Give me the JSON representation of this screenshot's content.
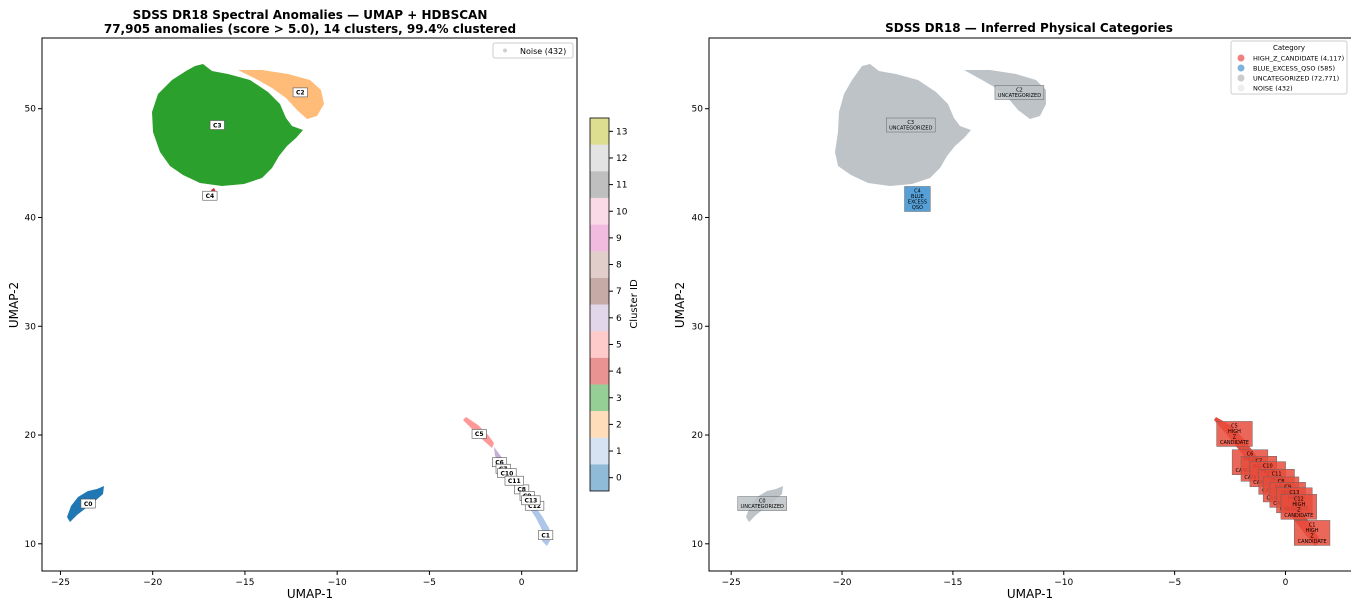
{
  "chart_data": [
    {
      "type": "scatter",
      "title": "SDSS DR18 Spectral Anomalies — UMAP + HDBSCAN",
      "subtitle": "77,905 anomalies (score > 5.0), 14 clusters, 99.4% clustered",
      "xlabel": "UMAP-1",
      "ylabel": "UMAP-2",
      "xlim": [
        -26,
        3
      ],
      "ylim": [
        7.5,
        56.5
      ],
      "xticks": [
        -25,
        -20,
        -15,
        -10,
        -5,
        0
      ],
      "yticks": [
        10,
        20,
        30,
        40,
        50
      ],
      "grid": false,
      "legend": {
        "placement": "top-right",
        "entries": [
          {
            "label": "Noise (432)",
            "color": "#d0d0d0"
          }
        ]
      },
      "colorbar": {
        "label": "Cluster ID",
        "ticks": [
          0,
          1,
          2,
          3,
          4,
          5,
          6,
          7,
          8,
          9,
          10,
          11,
          12,
          13
        ]
      },
      "clusters": [
        {
          "id": 0,
          "label": "C0",
          "color": "#1f77b4",
          "center": [
            -23.5,
            13.7
          ]
        },
        {
          "id": 1,
          "label": "C1",
          "color": "#aec7e8",
          "center": [
            1.3,
            10.8
          ]
        },
        {
          "id": 2,
          "label": "C2",
          "color": "#ffbb78",
          "center": [
            -12.0,
            51.5
          ]
        },
        {
          "id": 3,
          "label": "C3",
          "color": "#2ca02c",
          "center": [
            -16.5,
            48.5
          ]
        },
        {
          "id": 4,
          "label": "C4",
          "color": "#d62728",
          "center": [
            -16.9,
            42.0
          ]
        },
        {
          "id": 5,
          "label": "C5",
          "color": "#ff9896",
          "center": [
            -2.3,
            20.1
          ]
        },
        {
          "id": 6,
          "label": "C6",
          "color": "#c5b0d5",
          "center": [
            -1.2,
            17.5
          ]
        },
        {
          "id": 7,
          "label": "C7",
          "color": "#8c564b",
          "center": [
            -1.0,
            16.9
          ]
        },
        {
          "id": 8,
          "label": "C8",
          "color": "#c49c94",
          "center": [
            0.0,
            15.0
          ]
        },
        {
          "id": 9,
          "label": "C9",
          "color": "#e377c2",
          "center": [
            0.3,
            14.4
          ]
        },
        {
          "id": 10,
          "label": "C10",
          "color": "#f7b6d2",
          "center": [
            -0.8,
            16.5
          ]
        },
        {
          "id": 11,
          "label": "C11",
          "color": "#7f7f7f",
          "center": [
            -0.4,
            15.8
          ]
        },
        {
          "id": 12,
          "label": "C12",
          "color": "#c7c7c7",
          "center": [
            0.7,
            13.5
          ]
        },
        {
          "id": 13,
          "label": "C13",
          "color": "#bcbd22",
          "center": [
            0.5,
            14.0
          ]
        }
      ]
    },
    {
      "type": "scatter",
      "title": "SDSS DR18 — Inferred Physical Categories",
      "xlabel": "UMAP-1",
      "ylabel": "UMAP-2",
      "xlim": [
        -26,
        3
      ],
      "ylim": [
        7.5,
        56.5
      ],
      "xticks": [
        -25,
        -20,
        -15,
        -10,
        -5,
        0
      ],
      "yticks": [
        10,
        20,
        30,
        40,
        50
      ],
      "grid": false,
      "legend": {
        "placement": "top-right",
        "title": "Category",
        "entries": [
          {
            "label": "HIGH_Z_CANDIDATE (4,117)",
            "color": "#f08080"
          },
          {
            "label": "BLUE_EXCESS_QSO (585)",
            "color": "#7fb3de"
          },
          {
            "label": "UNCATEGORIZED (72,771)",
            "color": "#cccccc"
          },
          {
            "label": "NOISE (432)",
            "color": "#eeeeee"
          }
        ]
      },
      "category_colors": {
        "HIGH_Z_CANDIDATE": "#e74c3c",
        "BLUE_EXCESS_QSO": "#3a8fd0",
        "UNCATEGORIZED": "#bdc3c7"
      },
      "annotations": [
        {
          "lines": [
            "C0",
            "UNCATEGORIZED"
          ],
          "category": "UNCATEGORIZED",
          "at": [
            -23.6,
            13.7
          ]
        },
        {
          "lines": [
            "C2",
            "UNCATEGORIZED"
          ],
          "category": "UNCATEGORIZED",
          "at": [
            -12.0,
            51.5
          ]
        },
        {
          "lines": [
            "C3",
            "UNCATEGORIZED"
          ],
          "category": "UNCATEGORIZED",
          "at": [
            -16.9,
            48.5
          ]
        },
        {
          "lines": [
            "C4",
            "BLUE",
            "EXCESS",
            "QSO"
          ],
          "category": "BLUE_EXCESS_QSO",
          "at": [
            -16.6,
            41.7
          ]
        },
        {
          "lines": [
            "C5",
            "HIGH",
            "Z",
            "CANDIDATE"
          ],
          "category": "HIGH_Z_CANDIDATE",
          "at": [
            -2.3,
            20.1
          ]
        },
        {
          "lines": [
            "C6",
            "HIGH",
            "Z",
            "CANDIDATE"
          ],
          "category": "HIGH_Z_CANDIDATE",
          "at": [
            -1.6,
            17.5
          ]
        },
        {
          "lines": [
            "C7",
            "HIGH",
            "Z",
            "CANDIDATE"
          ],
          "category": "HIGH_Z_CANDIDATE",
          "at": [
            -1.2,
            16.9
          ]
        },
        {
          "lines": [
            "C10",
            "HIGH",
            "Z",
            "CANDIDATE"
          ],
          "category": "HIGH_Z_CANDIDATE",
          "at": [
            -0.8,
            16.4
          ]
        },
        {
          "lines": [
            "C11",
            "HIGH",
            "Z",
            "CANDIDATE"
          ],
          "category": "HIGH_Z_CANDIDATE",
          "at": [
            -0.4,
            15.7
          ]
        },
        {
          "lines": [
            "C8",
            "HIGH",
            "Z",
            "CANDIDATE"
          ],
          "category": "HIGH_Z_CANDIDATE",
          "at": [
            -0.2,
            15.0
          ]
        },
        {
          "lines": [
            "C9",
            "HIGH",
            "Z",
            "CANDIDATE"
          ],
          "category": "HIGH_Z_CANDIDATE",
          "at": [
            0.1,
            14.5
          ]
        },
        {
          "lines": [
            "C13",
            "HIGH",
            "Z",
            "CANDIDATE"
          ],
          "category": "HIGH_Z_CANDIDATE",
          "at": [
            0.4,
            14.0
          ]
        },
        {
          "lines": [
            "C12",
            "HIGH",
            "Z",
            "CANDIDATE"
          ],
          "category": "HIGH_Z_CANDIDATE",
          "at": [
            0.6,
            13.4
          ]
        },
        {
          "lines": [
            "C1",
            "HIGH",
            "Z",
            "CANDIDATE"
          ],
          "category": "HIGH_Z_CANDIDATE",
          "at": [
            1.2,
            11.0
          ]
        }
      ]
    }
  ]
}
